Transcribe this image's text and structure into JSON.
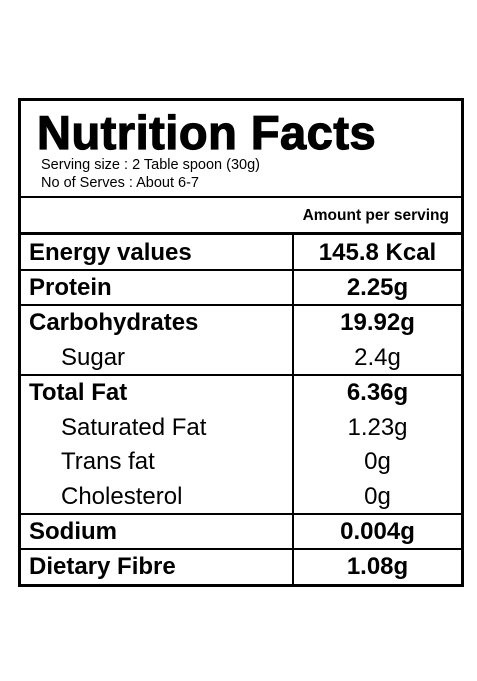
{
  "header": {
    "title": "Nutrition Facts",
    "serving_size": "Serving size : 2 Table spoon (30g)",
    "servings": "No of Serves : About 6-7"
  },
  "table": {
    "heading": "Amount per serving",
    "rows": [
      [
        "Energy values",
        "145.8 Kcal"
      ],
      [
        "Protein",
        "2.25g"
      ],
      [
        "Carbohydrates",
        "19.92g"
      ],
      [
        "Sugar",
        "2.4g"
      ],
      [
        "Total Fat",
        "6.36g"
      ],
      [
        "Saturated Fat",
        "1.23g"
      ],
      [
        "Trans fat",
        "0g"
      ],
      [
        "Cholesterol",
        "0g"
      ],
      [
        "Sodium",
        "0.004g"
      ],
      [
        "Dietary Fibre",
        "1.08g"
      ]
    ]
  }
}
